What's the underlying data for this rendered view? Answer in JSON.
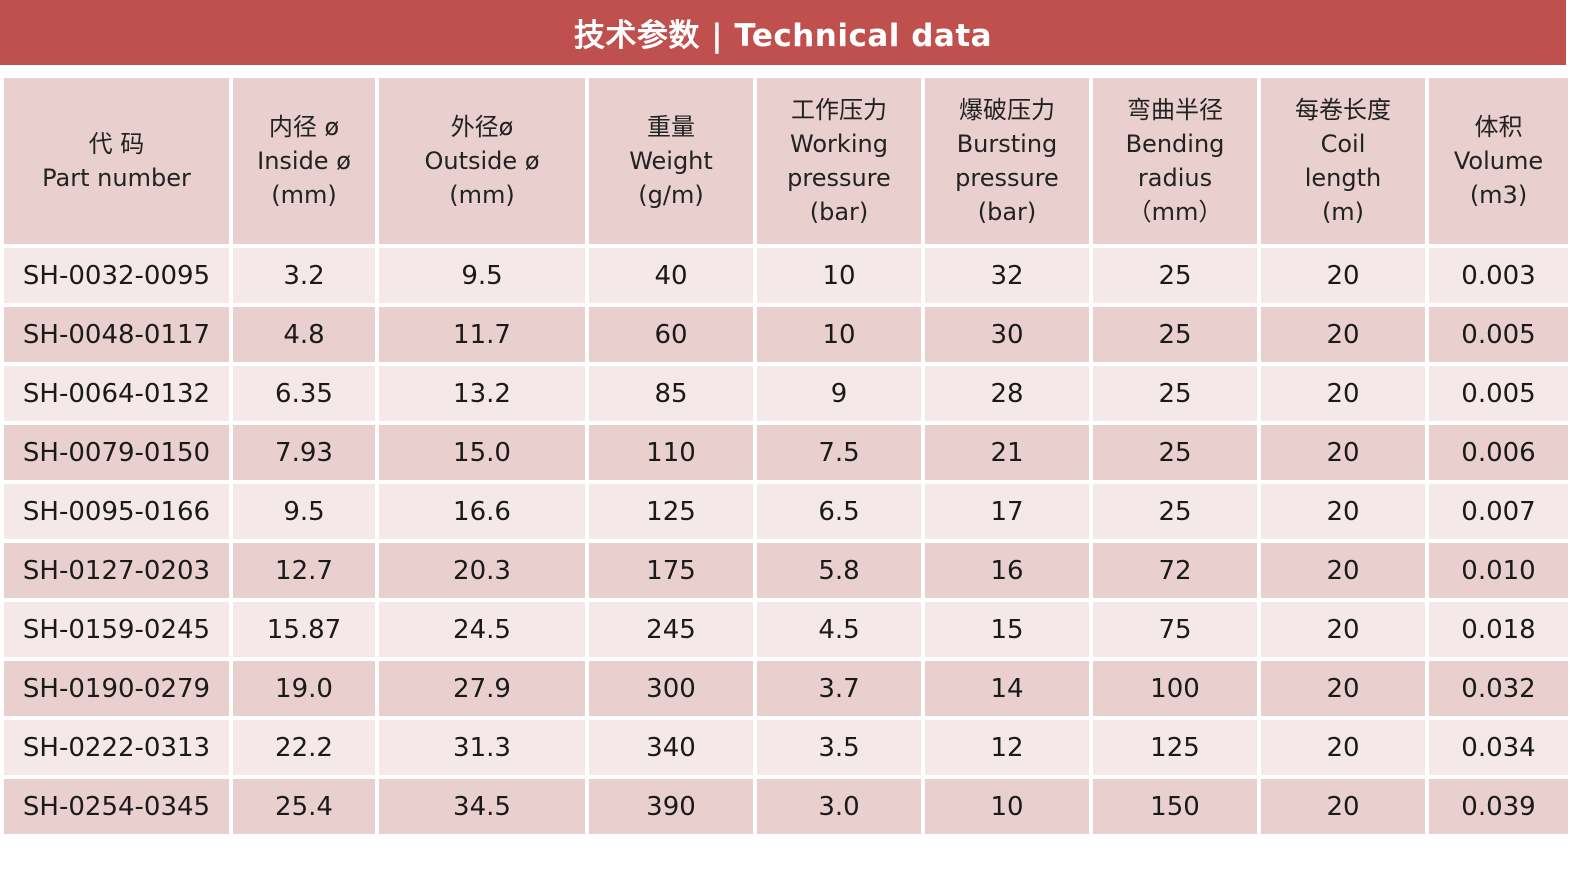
{
  "title": "技术参数 | Technical data",
  "headers": [
    {
      "lines": [
        "代 码",
        "Part number"
      ]
    },
    {
      "lines": [
        "内径 ø",
        "Inside ø",
        "(mm)"
      ]
    },
    {
      "lines": [
        "外径ø",
        "Outside ø",
        "(mm)"
      ]
    },
    {
      "lines": [
        "重量",
        "Weight",
        "(g/m)"
      ]
    },
    {
      "lines": [
        "工作压力",
        "Working",
        "pressure",
        "(bar)"
      ]
    },
    {
      "lines": [
        "爆破压力",
        "Bursting",
        "pressure",
        "(bar)"
      ]
    },
    {
      "lines": [
        "弯曲半径",
        "Bending",
        "radius",
        "（mm）"
      ]
    },
    {
      "lines": [
        "每卷长度",
        "Coil",
        "length",
        "(m)"
      ]
    },
    {
      "lines": [
        "体积",
        "Volume",
        "(m3)"
      ]
    }
  ],
  "rows": [
    [
      "SH-0032-0095",
      "3.2",
      "9.5",
      "40",
      "10",
      "32",
      "25",
      "20",
      "0.003"
    ],
    [
      "SH-0048-0117",
      "4.8",
      "11.7",
      "60",
      "10",
      "30",
      "25",
      "20",
      "0.005"
    ],
    [
      "SH-0064-0132",
      "6.35",
      "13.2",
      "85",
      "9",
      "28",
      "25",
      "20",
      "0.005"
    ],
    [
      "SH-0079-0150",
      "7.93",
      "15.0",
      "110",
      "7.5",
      "21",
      "25",
      "20",
      "0.006"
    ],
    [
      "SH-0095-0166",
      "9.5",
      "16.6",
      "125",
      "6.5",
      "17",
      "25",
      "20",
      "0.007"
    ],
    [
      "SH-0127-0203",
      "12.7",
      "20.3",
      "175",
      "5.8",
      "16",
      "72",
      "20",
      "0.010"
    ],
    [
      "SH-0159-0245",
      "15.87",
      "24.5",
      "245",
      "4.5",
      "15",
      "75",
      "20",
      "0.018"
    ],
    [
      "SH-0190-0279",
      "19.0",
      "27.9",
      "300",
      "3.7",
      "14",
      "100",
      "20",
      "0.032"
    ],
    [
      "SH-0222-0313",
      "22.2",
      "31.3",
      "340",
      "3.5",
      "12",
      "125",
      "20",
      "0.034"
    ],
    [
      "SH-0254-0345",
      "25.4",
      "34.5",
      "390",
      "3.0",
      "10",
      "150",
      "20",
      "0.039"
    ]
  ],
  "colors": {
    "title_bg": "#c0504d",
    "header_bg": "#eacfcf",
    "row_light": "#f4e8e8",
    "row_dark": "#eacfcf"
  }
}
